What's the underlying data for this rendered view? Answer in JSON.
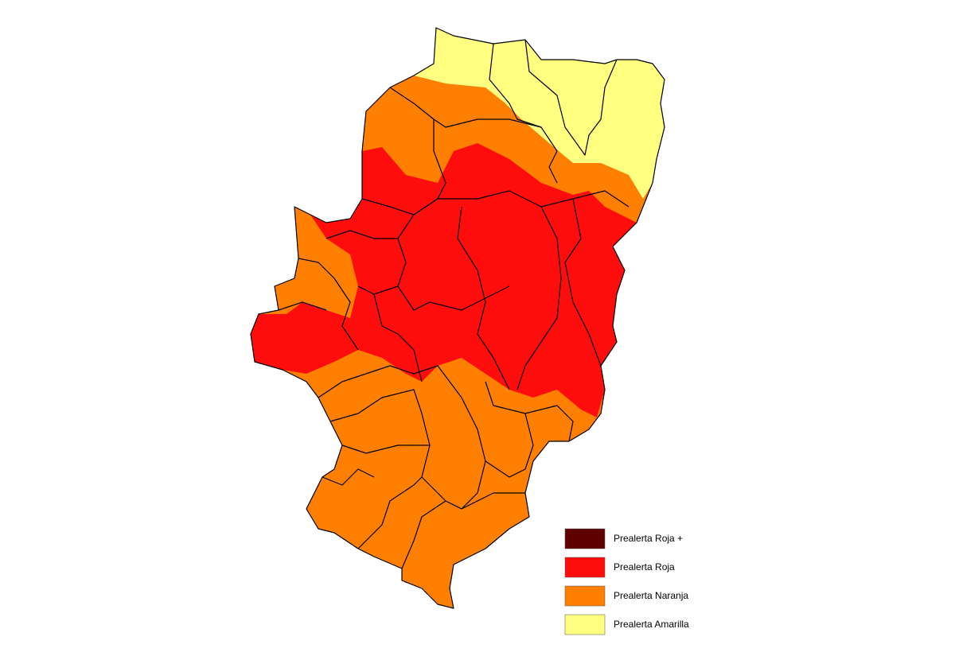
{
  "legend": {
    "items": [
      {
        "label": "Prealerta Roja +",
        "color": "#5e0000"
      },
      {
        "label": "Prealerta Roja",
        "color": "#ff0d0d"
      },
      {
        "label": "Prealerta Naranja",
        "color": "#ff8000"
      },
      {
        "label": "Prealerta Amarilla",
        "color": "#ffff80"
      }
    ]
  }
}
